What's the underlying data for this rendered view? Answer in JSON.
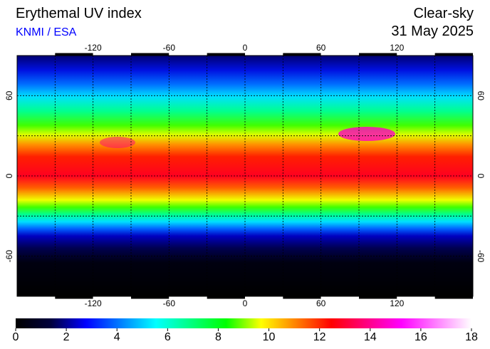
{
  "header": {
    "title": "Erythemal UV index",
    "source": "KNMI / ESA",
    "condition": "Clear-sky",
    "date": "31 May 2025"
  },
  "map": {
    "xlim": [
      -180,
      180
    ],
    "ylim": [
      -90,
      90
    ],
    "xticks": [
      -120,
      -60,
      0,
      60,
      120
    ],
    "yticks": [
      60,
      0,
      -60
    ],
    "xgrid": [
      -150,
      -120,
      -90,
      -60,
      -30,
      0,
      30,
      60,
      90,
      120,
      150
    ],
    "ygrid": [
      60,
      30,
      0,
      -30,
      -60
    ]
  },
  "colorbar": {
    "range": [
      0,
      18
    ],
    "ticks": [
      0,
      2,
      4,
      6,
      8,
      10,
      12,
      14,
      16,
      18
    ],
    "colors": [
      "#000000",
      "#00003c",
      "#0000ff",
      "#0080ff",
      "#00ffff",
      "#00ff80",
      "#00ff00",
      "#ffff00",
      "#ff8000",
      "#ff0000",
      "#ff0080",
      "#ff00ff",
      "#ff80ff",
      "#ffffff"
    ]
  }
}
